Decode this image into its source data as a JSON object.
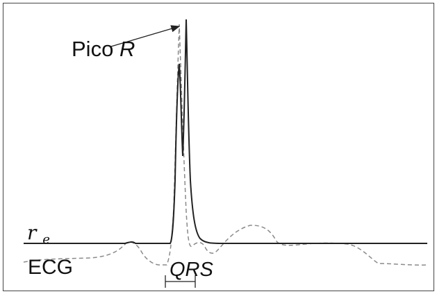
{
  "labels": {
    "peak_prefix": "Pico",
    "peak_letter": "R",
    "re_symbol": "r",
    "re_subscript": "e",
    "ecg": "ECG",
    "qrs": "QRS"
  },
  "legend": {
    "re_line": "solid",
    "ecg_line": "dashed"
  },
  "colors": {
    "solid_line": "#222222",
    "dashed_line": "#8a8a8a",
    "frame": "#444444"
  }
}
